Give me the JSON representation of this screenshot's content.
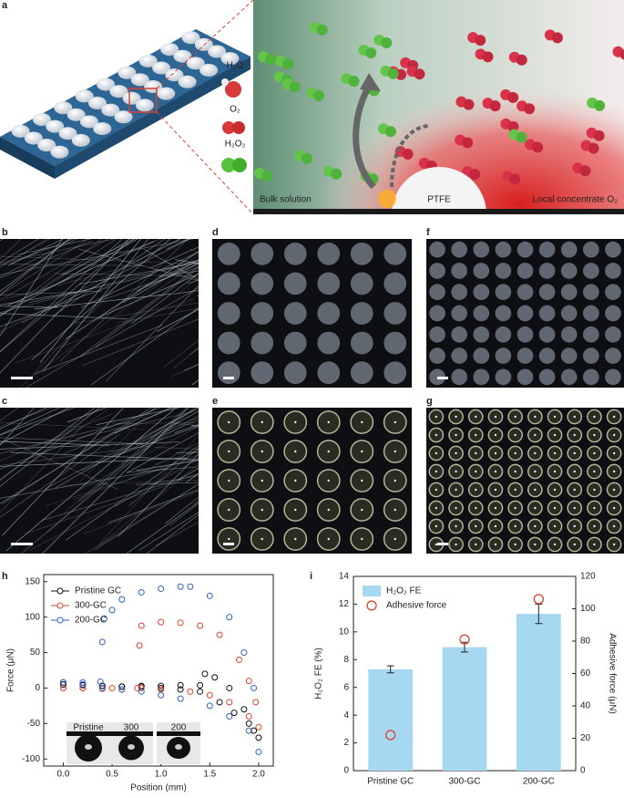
{
  "figure": {
    "panel_labels": [
      "a",
      "b",
      "c",
      "d",
      "e",
      "f",
      "g",
      "h",
      "i"
    ],
    "molecules": [
      "H₂O",
      "O₂",
      "H₂O₂"
    ],
    "regions": [
      "Bulk solution",
      "PTFE",
      "Local concentrate O₂"
    ]
  },
  "chart_data": [
    {
      "type": "scatter",
      "xlabel": "Position (mm)",
      "ylabel": "Force (μN)",
      "xlim": [
        -0.2,
        2.15
      ],
      "xticks": [
        {
          "value": 0,
          "label": "0.0"
        },
        {
          "value": 0.5,
          "label": "0.5"
        },
        {
          "value": 1,
          "label": "1.0"
        },
        {
          "value": 1.5,
          "label": "1.5"
        },
        {
          "value": 2,
          "label": "2.0"
        }
      ],
      "ylim": [
        -110,
        160
      ],
      "yticks": [
        -100,
        -50,
        0,
        50,
        100,
        150
      ],
      "annotations": [
        "Pristine",
        "300",
        "200"
      ],
      "series": [
        {
          "name": "Pristine GC",
          "color": "#111111",
          "x": [
            0,
            0.2,
            0.4,
            0.6,
            0.8,
            1.0,
            1.2,
            1.4,
            1.45,
            1.55,
            1.7,
            1.85,
            1.95,
            2.0,
            1.9,
            1.75,
            1.6,
            1.4,
            1.2,
            1.0,
            0.8,
            0.6,
            0.4,
            0.2,
            0
          ],
          "values": [
            5,
            4,
            3,
            2,
            3,
            3,
            4,
            4,
            20,
            15,
            0,
            -30,
            -60,
            -70,
            -50,
            -35,
            -20,
            -5,
            -2,
            0,
            2,
            2,
            3,
            4,
            5
          ]
        },
        {
          "name": "300-GC",
          "color": "#d9432f",
          "x": [
            0,
            0.2,
            0.4,
            0.6,
            0.76,
            0.78,
            0.8,
            1.0,
            1.2,
            1.4,
            1.6,
            1.8,
            1.9,
            1.97,
            2.0,
            1.9,
            1.7,
            1.5,
            1.3,
            1.0,
            0.8,
            0.5,
            0.2,
            0
          ],
          "values": [
            0,
            0,
            -1,
            -2,
            0,
            60,
            88,
            93,
            92,
            88,
            75,
            40,
            10,
            -20,
            -55,
            -40,
            -20,
            -10,
            -5,
            -2,
            0,
            0,
            0,
            0
          ]
        },
        {
          "name": "200-GC",
          "color": "#2f62b8",
          "x": [
            0,
            0.2,
            0.38,
            0.4,
            0.42,
            0.5,
            0.6,
            0.8,
            1.0,
            1.2,
            1.3,
            1.5,
            1.7,
            1.85,
            1.95,
            2.0,
            1.9,
            1.7,
            1.5,
            1.2,
            1.0,
            0.8,
            0.6,
            0.4,
            0.2,
            0
          ],
          "values": [
            8,
            8,
            9,
            65,
            98,
            110,
            125,
            135,
            140,
            143,
            143,
            130,
            100,
            50,
            0,
            -90,
            -60,
            -40,
            -25,
            -15,
            -10,
            -5,
            -2,
            0,
            5,
            8
          ]
        }
      ]
    },
    {
      "type": "bar",
      "ylabel": "H₂O₂ FE (%)",
      "y2label": "Adhesive force (μN)",
      "categories": [
        "Pristine GC",
        "300-GC",
        "200-GC"
      ],
      "ylim": [
        0,
        14
      ],
      "yticks": [
        0,
        2,
        4,
        6,
        8,
        10,
        12,
        14
      ],
      "y2lim": [
        0,
        120
      ],
      "y2ticks": [
        0,
        20,
        40,
        60,
        80,
        100,
        120
      ],
      "series": [
        {
          "name": "H₂O₂ FE",
          "color": "#a7d8f2",
          "values": [
            7.3,
            8.9,
            11.3
          ],
          "errors": [
            0.25,
            0.35,
            0.7
          ]
        },
        {
          "name": "Adhesive force",
          "color": "#d9432f",
          "axis": "y2",
          "values": [
            22,
            81,
            106
          ]
        }
      ]
    }
  ]
}
